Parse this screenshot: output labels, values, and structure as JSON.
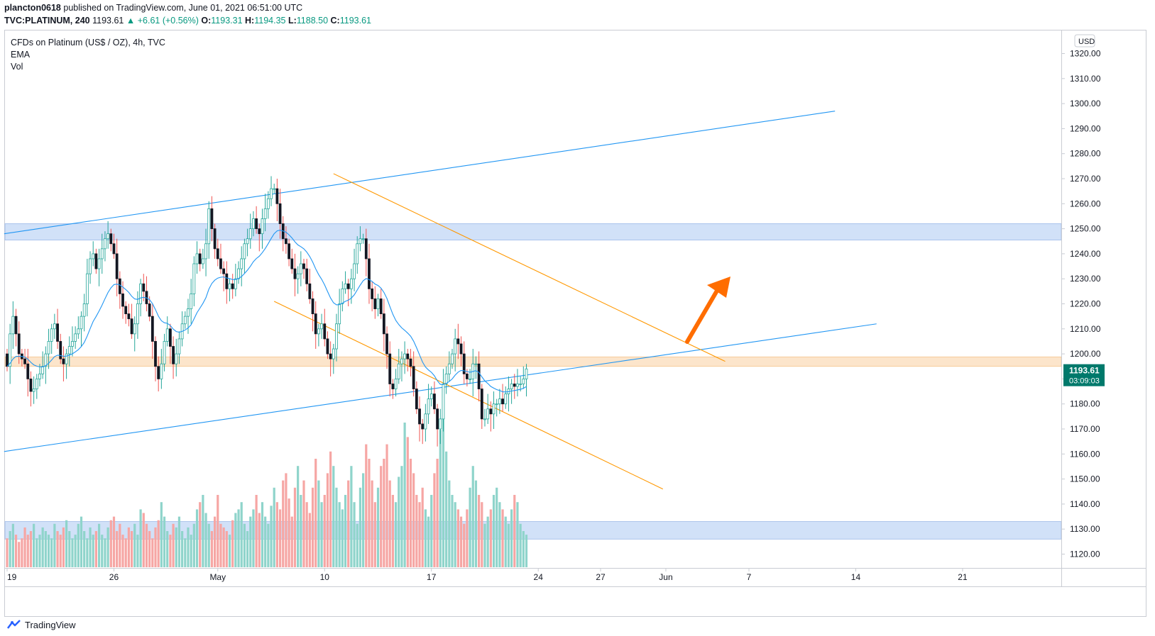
{
  "header": {
    "author": "plancton0618",
    "published_text": "published on TradingView.com, June 01, 2021 06:51:00 UTC",
    "symbol": "TVC:PLATINUM, 240",
    "last": "1193.61",
    "change": "+6.61 (+0.56%)",
    "o_label": "O:",
    "o": "1193.31",
    "h_label": "H:",
    "h": "1194.35",
    "l_label": "L:",
    "l": "1188.50",
    "c_label": "C:",
    "c": "1193.61"
  },
  "legend": {
    "title": "CFDs on Platinum (US$ / OZ), 4h, TVC",
    "ema": "EMA",
    "vol": "Vol"
  },
  "price_axis": {
    "currency": "USD",
    "last_price": "1193.61",
    "countdown": "03:09:03"
  },
  "brand": {
    "name": "TradingView"
  },
  "colors": {
    "up": "#26a69a",
    "down": "#ef5350",
    "candle_body": "#131722",
    "ema": "#2196f3",
    "channel": "#2196f3",
    "falling_channel": "#ff9800",
    "blue_zone": "#c9dcf7",
    "orange_zone": "#fce0c2",
    "arrow": "#ff6d00",
    "price_label": "#00796b"
  },
  "chart_data": {
    "type": "candlestick",
    "title": "CFDs on Platinum (US$ / OZ), 4h, TVC",
    "ylim": [
      1115,
      1325
    ],
    "y_ticks": [
      1120,
      1130,
      1140,
      1150,
      1160,
      1170,
      1180,
      1190,
      1200,
      1210,
      1220,
      1230,
      1240,
      1250,
      1260,
      1270,
      1280,
      1290,
      1300,
      1310,
      1320
    ],
    "x_ticks": [
      {
        "label": "19",
        "bar": 0
      },
      {
        "label": "26",
        "bar": 36
      },
      {
        "label": "May",
        "bar": 71
      },
      {
        "label": "10",
        "bar": 107
      },
      {
        "label": "17",
        "bar": 143
      },
      {
        "label": "24",
        "bar": 179
      },
      {
        "label": "27",
        "bar": 200
      },
      {
        "label": "Jun",
        "bar": 222
      },
      {
        "label": "7",
        "bar": 250
      },
      {
        "label": "14",
        "bar": 286
      },
      {
        "label": "21",
        "bar": 322
      }
    ],
    "x_range_bars": [
      -0.5,
      355
    ],
    "close": [
      1195,
      1208,
      1215,
      1208,
      1200,
      1198,
      1196,
      1190,
      1185,
      1186,
      1190,
      1192,
      1195,
      1200,
      1205,
      1210,
      1212,
      1205,
      1198,
      1196,
      1200,
      1203,
      1205,
      1208,
      1210,
      1215,
      1220,
      1232,
      1238,
      1240,
      1234,
      1238,
      1242,
      1246,
      1248,
      1244,
      1240,
      1230,
      1224,
      1219,
      1216,
      1214,
      1208,
      1212,
      1220,
      1228,
      1225,
      1220,
      1215,
      1205,
      1195,
      1190,
      1196,
      1205,
      1210,
      1203,
      1196,
      1200,
      1206,
      1212,
      1215,
      1218,
      1224,
      1236,
      1240,
      1236,
      1238,
      1244,
      1258,
      1250,
      1242,
      1238,
      1234,
      1232,
      1226,
      1228,
      1226,
      1230,
      1234,
      1238,
      1244,
      1246,
      1250,
      1254,
      1250,
      1248,
      1254,
      1258,
      1262,
      1266,
      1266,
      1260,
      1252,
      1246,
      1244,
      1238,
      1234,
      1230,
      1232,
      1236,
      1234,
      1228,
      1222,
      1216,
      1208,
      1210,
      1212,
      1206,
      1200,
      1198,
      1202,
      1212,
      1220,
      1226,
      1228,
      1226,
      1230,
      1236,
      1244,
      1246,
      1246,
      1238,
      1226,
      1222,
      1218,
      1222,
      1216,
      1208,
      1200,
      1188,
      1186,
      1190,
      1196,
      1198,
      1200,
      1198,
      1195,
      1186,
      1178,
      1172,
      1170,
      1176,
      1182,
      1184,
      1178,
      1170,
      1174,
      1188,
      1192,
      1196,
      1200,
      1206,
      1204,
      1200,
      1192,
      1190,
      1190,
      1196,
      1196,
      1186,
      1174,
      1174,
      1178,
      1176,
      1180,
      1180,
      1182,
      1180,
      1184,
      1186,
      1188,
      1187,
      1188,
      1188,
      1190,
      1194
    ],
    "open": [
      1200,
      1195,
      1208,
      1215,
      1208,
      1200,
      1198,
      1196,
      1190,
      1185,
      1186,
      1190,
      1192,
      1195,
      1200,
      1205,
      1210,
      1212,
      1205,
      1198,
      1196,
      1200,
      1203,
      1205,
      1208,
      1210,
      1215,
      1220,
      1232,
      1238,
      1240,
      1234,
      1238,
      1242,
      1246,
      1248,
      1244,
      1240,
      1230,
      1224,
      1219,
      1216,
      1214,
      1208,
      1212,
      1220,
      1228,
      1225,
      1220,
      1215,
      1205,
      1195,
      1190,
      1196,
      1205,
      1210,
      1203,
      1196,
      1200,
      1206,
      1212,
      1215,
      1218,
      1224,
      1236,
      1240,
      1236,
      1238,
      1244,
      1258,
      1250,
      1242,
      1238,
      1234,
      1232,
      1226,
      1228,
      1226,
      1230,
      1234,
      1238,
      1244,
      1246,
      1250,
      1254,
      1250,
      1248,
      1254,
      1258,
      1262,
      1266,
      1266,
      1260,
      1252,
      1246,
      1244,
      1238,
      1234,
      1230,
      1232,
      1236,
      1234,
      1228,
      1222,
      1216,
      1208,
      1210,
      1212,
      1206,
      1200,
      1198,
      1202,
      1212,
      1220,
      1226,
      1228,
      1226,
      1230,
      1236,
      1244,
      1246,
      1246,
      1238,
      1226,
      1222,
      1218,
      1222,
      1216,
      1208,
      1200,
      1188,
      1186,
      1190,
      1196,
      1198,
      1200,
      1198,
      1195,
      1186,
      1178,
      1172,
      1170,
      1176,
      1182,
      1184,
      1178,
      1170,
      1174,
      1188,
      1192,
      1196,
      1200,
      1206,
      1204,
      1200,
      1192,
      1190,
      1190,
      1196,
      1196,
      1186,
      1174,
      1174,
      1178,
      1176,
      1180,
      1180,
      1182,
      1180,
      1184,
      1186,
      1188,
      1187,
      1188,
      1188,
      1190
    ],
    "volume": [
      8,
      10,
      12,
      9,
      7,
      8,
      11,
      9,
      10,
      12,
      8,
      9,
      11,
      10,
      9,
      8,
      12,
      10,
      9,
      11,
      13,
      10,
      8,
      9,
      12,
      14,
      10,
      8,
      11,
      9,
      10,
      12,
      9,
      8,
      11,
      13,
      14,
      10,
      12,
      9,
      8,
      11,
      10,
      12,
      9,
      16,
      15,
      12,
      10,
      8,
      11,
      13,
      18,
      14,
      10,
      9,
      12,
      11,
      14,
      10,
      8,
      11,
      9,
      12,
      16,
      18,
      20,
      15,
      12,
      10,
      14,
      20,
      12,
      11,
      10,
      9,
      13,
      15,
      16,
      18,
      12,
      10,
      14,
      16,
      20,
      15,
      18,
      14,
      12,
      17,
      22,
      18,
      16,
      24,
      26,
      19,
      14,
      22,
      28,
      20,
      24,
      18,
      15,
      22,
      30,
      24,
      18,
      20,
      26,
      32,
      28,
      22,
      18,
      16,
      20,
      24,
      28,
      18,
      12,
      22,
      26,
      34,
      30,
      24,
      18,
      22,
      28,
      30,
      34,
      24,
      20,
      18,
      25,
      28,
      40,
      36,
      30,
      26,
      20,
      18,
      22,
      16,
      14,
      20,
      26,
      30,
      38,
      44,
      32,
      24,
      20,
      18,
      16,
      14,
      12,
      16,
      22,
      28,
      24,
      20,
      18,
      12,
      14,
      16,
      20,
      22,
      18,
      16,
      14,
      12,
      16,
      20,
      18,
      12,
      10,
      9
    ]
  }
}
